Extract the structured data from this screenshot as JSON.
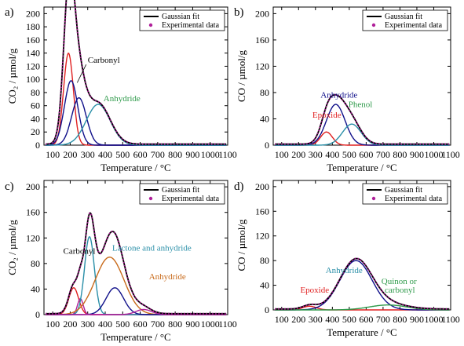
{
  "figure": {
    "legend_entries": {
      "fit": "Gaussian fit",
      "experimental": "Experimental data"
    },
    "colors": {
      "black": "#000000",
      "red": "#e02020",
      "blue": "#10108a",
      "teal": "#2a8fa8",
      "pink": "#b0209a",
      "orange": "#c86a1a",
      "lightblue": "#3aa8d8",
      "green": "#2e9a4a"
    }
  },
  "chart_data": [
    {
      "panel": "a)",
      "type": "line",
      "xlabel": "Temperature / °C",
      "ylabel": "CO₂ / µmol/g",
      "xlim": [
        50,
        1100
      ],
      "ylim": [
        0,
        210
      ],
      "xticks": [
        100,
        200,
        300,
        400,
        500,
        600,
        700,
        800,
        900,
        1000,
        1100
      ],
      "yticks": [
        0,
        20,
        40,
        60,
        80,
        100,
        120,
        140,
        160,
        180,
        200
      ],
      "legend_position": "top-right",
      "gaussians": [
        {
          "color": "red",
          "amp": 140,
          "center": 190,
          "width": 28
        },
        {
          "color": "blue",
          "amp": 98,
          "center": 205,
          "width": 38
        },
        {
          "color": "blue",
          "amp": 72,
          "center": 250,
          "width": 42
        },
        {
          "color": "teal",
          "amp": 62,
          "center": 360,
          "width": 68
        }
      ],
      "annotations": [
        {
          "text": "Carbonyl",
          "color": "black",
          "x": 300,
          "y": 125,
          "arrow_to": [
            240,
            95
          ]
        },
        {
          "text": "Anhydride",
          "color": "green",
          "x": 390,
          "y": 67
        }
      ]
    },
    {
      "panel": "b)",
      "type": "line",
      "xlabel": "Temperature / °C",
      "ylabel": "CO / µmol/g",
      "xlim": [
        50,
        1100
      ],
      "ylim": [
        0,
        210
      ],
      "xticks": [
        100,
        200,
        300,
        400,
        500,
        600,
        700,
        800,
        900,
        1000,
        1100
      ],
      "yticks": [
        0,
        40,
        80,
        120,
        160,
        200
      ],
      "legend_position": "top-right",
      "gaussians": [
        {
          "color": "red",
          "amp": 20,
          "center": 365,
          "width": 35
        },
        {
          "color": "blue",
          "amp": 62,
          "center": 420,
          "width": 55
        },
        {
          "color": "teal",
          "amp": 32,
          "center": 515,
          "width": 55
        }
      ],
      "annotations": [
        {
          "text": "Anhydride",
          "color": "blue",
          "x": 330,
          "y": 72
        },
        {
          "text": "Epoxide",
          "color": "red",
          "x": 282,
          "y": 42
        },
        {
          "text": "Phenol",
          "color": "green",
          "x": 495,
          "y": 58
        }
      ]
    },
    {
      "panel": "c)",
      "type": "line",
      "xlabel": "Temperature / °C",
      "ylabel": "CO₂ / µmol/g",
      "xlim": [
        50,
        1100
      ],
      "ylim": [
        0,
        210
      ],
      "xticks": [
        100,
        200,
        300,
        400,
        500,
        600,
        700,
        800,
        900,
        1000,
        1100
      ],
      "yticks": [
        0,
        40,
        80,
        120,
        160,
        200
      ],
      "legend_position": "top-right",
      "gaussians": [
        {
          "color": "red",
          "amp": 42,
          "center": 220,
          "width": 28
        },
        {
          "color": "pink",
          "amp": 25,
          "center": 258,
          "width": 16
        },
        {
          "color": "teal",
          "amp": 122,
          "center": 310,
          "width": 28
        },
        {
          "color": "orange",
          "amp": 90,
          "center": 425,
          "width": 82
        },
        {
          "color": "blue",
          "amp": 42,
          "center": 455,
          "width": 50
        },
        {
          "color": "pink",
          "amp": 8,
          "center": 620,
          "width": 45
        }
      ],
      "annotations": [
        {
          "text": "Carbonyl",
          "color": "black",
          "x": 160,
          "y": 95
        },
        {
          "text": "Lactone and anhydride",
          "color": "teal",
          "x": 440,
          "y": 100
        },
        {
          "text": "Anhydride",
          "color": "orange",
          "x": 650,
          "y": 55
        }
      ]
    },
    {
      "panel": "d)",
      "type": "line",
      "xlabel": "Temperature / °C",
      "ylabel": "CO / µmol/g",
      "xlim": [
        50,
        1100
      ],
      "ylim": [
        0,
        210
      ],
      "xticks": [
        100,
        200,
        300,
        400,
        500,
        600,
        700,
        800,
        900,
        1000,
        1100
      ],
      "yticks": [
        0,
        40,
        80,
        120,
        160,
        200
      ],
      "legend_position": "top-right",
      "gaussians": [
        {
          "color": "red",
          "amp": 6,
          "center": 265,
          "width": 40
        },
        {
          "color": "blue",
          "amp": 80,
          "center": 540,
          "width": 95
        },
        {
          "color": "green",
          "amp": 8,
          "center": 730,
          "width": 110
        }
      ],
      "annotations": [
        {
          "text": "Anhydride",
          "color": "teal",
          "x": 360,
          "y": 60
        },
        {
          "text": "Epoxide",
          "color": "red",
          "x": 210,
          "y": 28
        },
        {
          "text": "Quinon or",
          "color": "green",
          "x": 690,
          "y": 42
        },
        {
          "text": "carbonyl",
          "color": "green",
          "x": 710,
          "y": 28
        }
      ]
    }
  ]
}
